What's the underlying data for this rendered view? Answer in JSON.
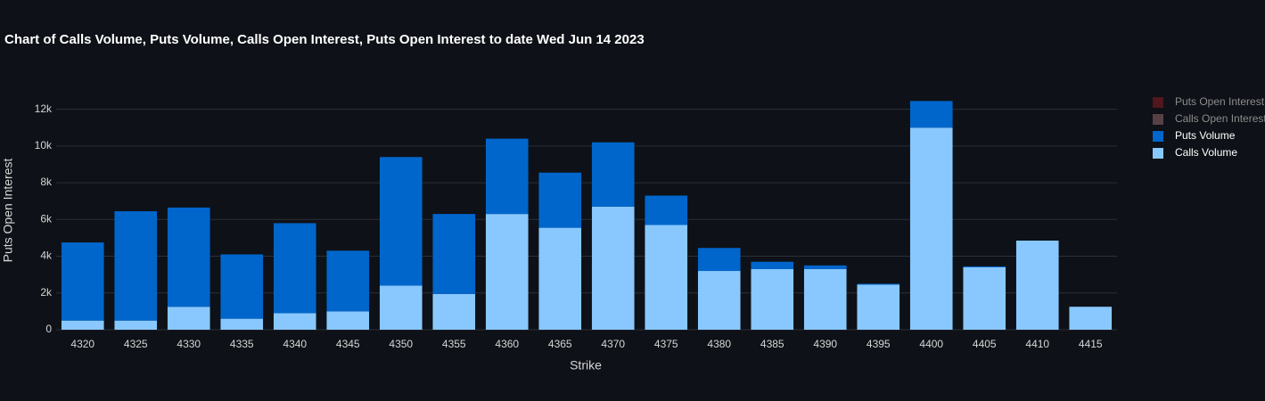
{
  "chart_data": {
    "type": "bar",
    "barmode": "stack",
    "title": "Chart of Calls Volume, Puts Volume, Calls Open Interest, Puts Open Interest to date Wed Jun 14 2023",
    "x_label": "Strike",
    "y_label": "Puts Open Interest",
    "categories": [
      "4320",
      "4325",
      "4330",
      "4335",
      "4340",
      "4345",
      "4350",
      "4355",
      "4360",
      "4365",
      "4370",
      "4375",
      "4380",
      "4385",
      "4390",
      "4395",
      "4400",
      "4405",
      "4410",
      "4415"
    ],
    "series": [
      {
        "name": "Calls Volume",
        "color": "#88c8ff",
        "visible": true,
        "values": [
          500,
          500,
          1250,
          600,
          900,
          1000,
          2400,
          1950,
          6300,
          5550,
          6700,
          5700,
          3200,
          3300,
          3300,
          2450,
          11000,
          3400,
          4850,
          1250
        ]
      },
      {
        "name": "Puts Volume",
        "color": "#0066cc",
        "visible": true,
        "values": [
          4250,
          5950,
          5400,
          3500,
          4900,
          3300,
          7000,
          4350,
          4100,
          3000,
          3500,
          1600,
          1250,
          400,
          200,
          50,
          1450,
          50,
          0,
          0
        ]
      },
      {
        "name": "Calls Open Interest",
        "color": "#8a6266",
        "visible": false,
        "values": [
          null,
          null,
          null,
          null,
          null,
          null,
          null,
          null,
          null,
          null,
          null,
          null,
          null,
          null,
          null,
          null,
          null,
          null,
          null,
          null
        ]
      },
      {
        "name": "Puts Open Interest",
        "color": "#7f1d22",
        "visible": false,
        "values": [
          null,
          null,
          null,
          null,
          null,
          null,
          null,
          null,
          null,
          null,
          null,
          null,
          null,
          null,
          null,
          null,
          null,
          null,
          null,
          null
        ]
      }
    ],
    "ylim": [
      0,
      13000
    ],
    "yticks": [
      0,
      {
        "value": 2000,
        "label": "2k"
      },
      {
        "value": 4000,
        "label": "4k"
      },
      {
        "value": 6000,
        "label": "6k"
      },
      {
        "value": 8000,
        "label": "8k"
      },
      {
        "value": 10000,
        "label": "10k"
      },
      {
        "value": 12000,
        "label": "12k"
      }
    ],
    "grid": true,
    "legend": "right"
  }
}
